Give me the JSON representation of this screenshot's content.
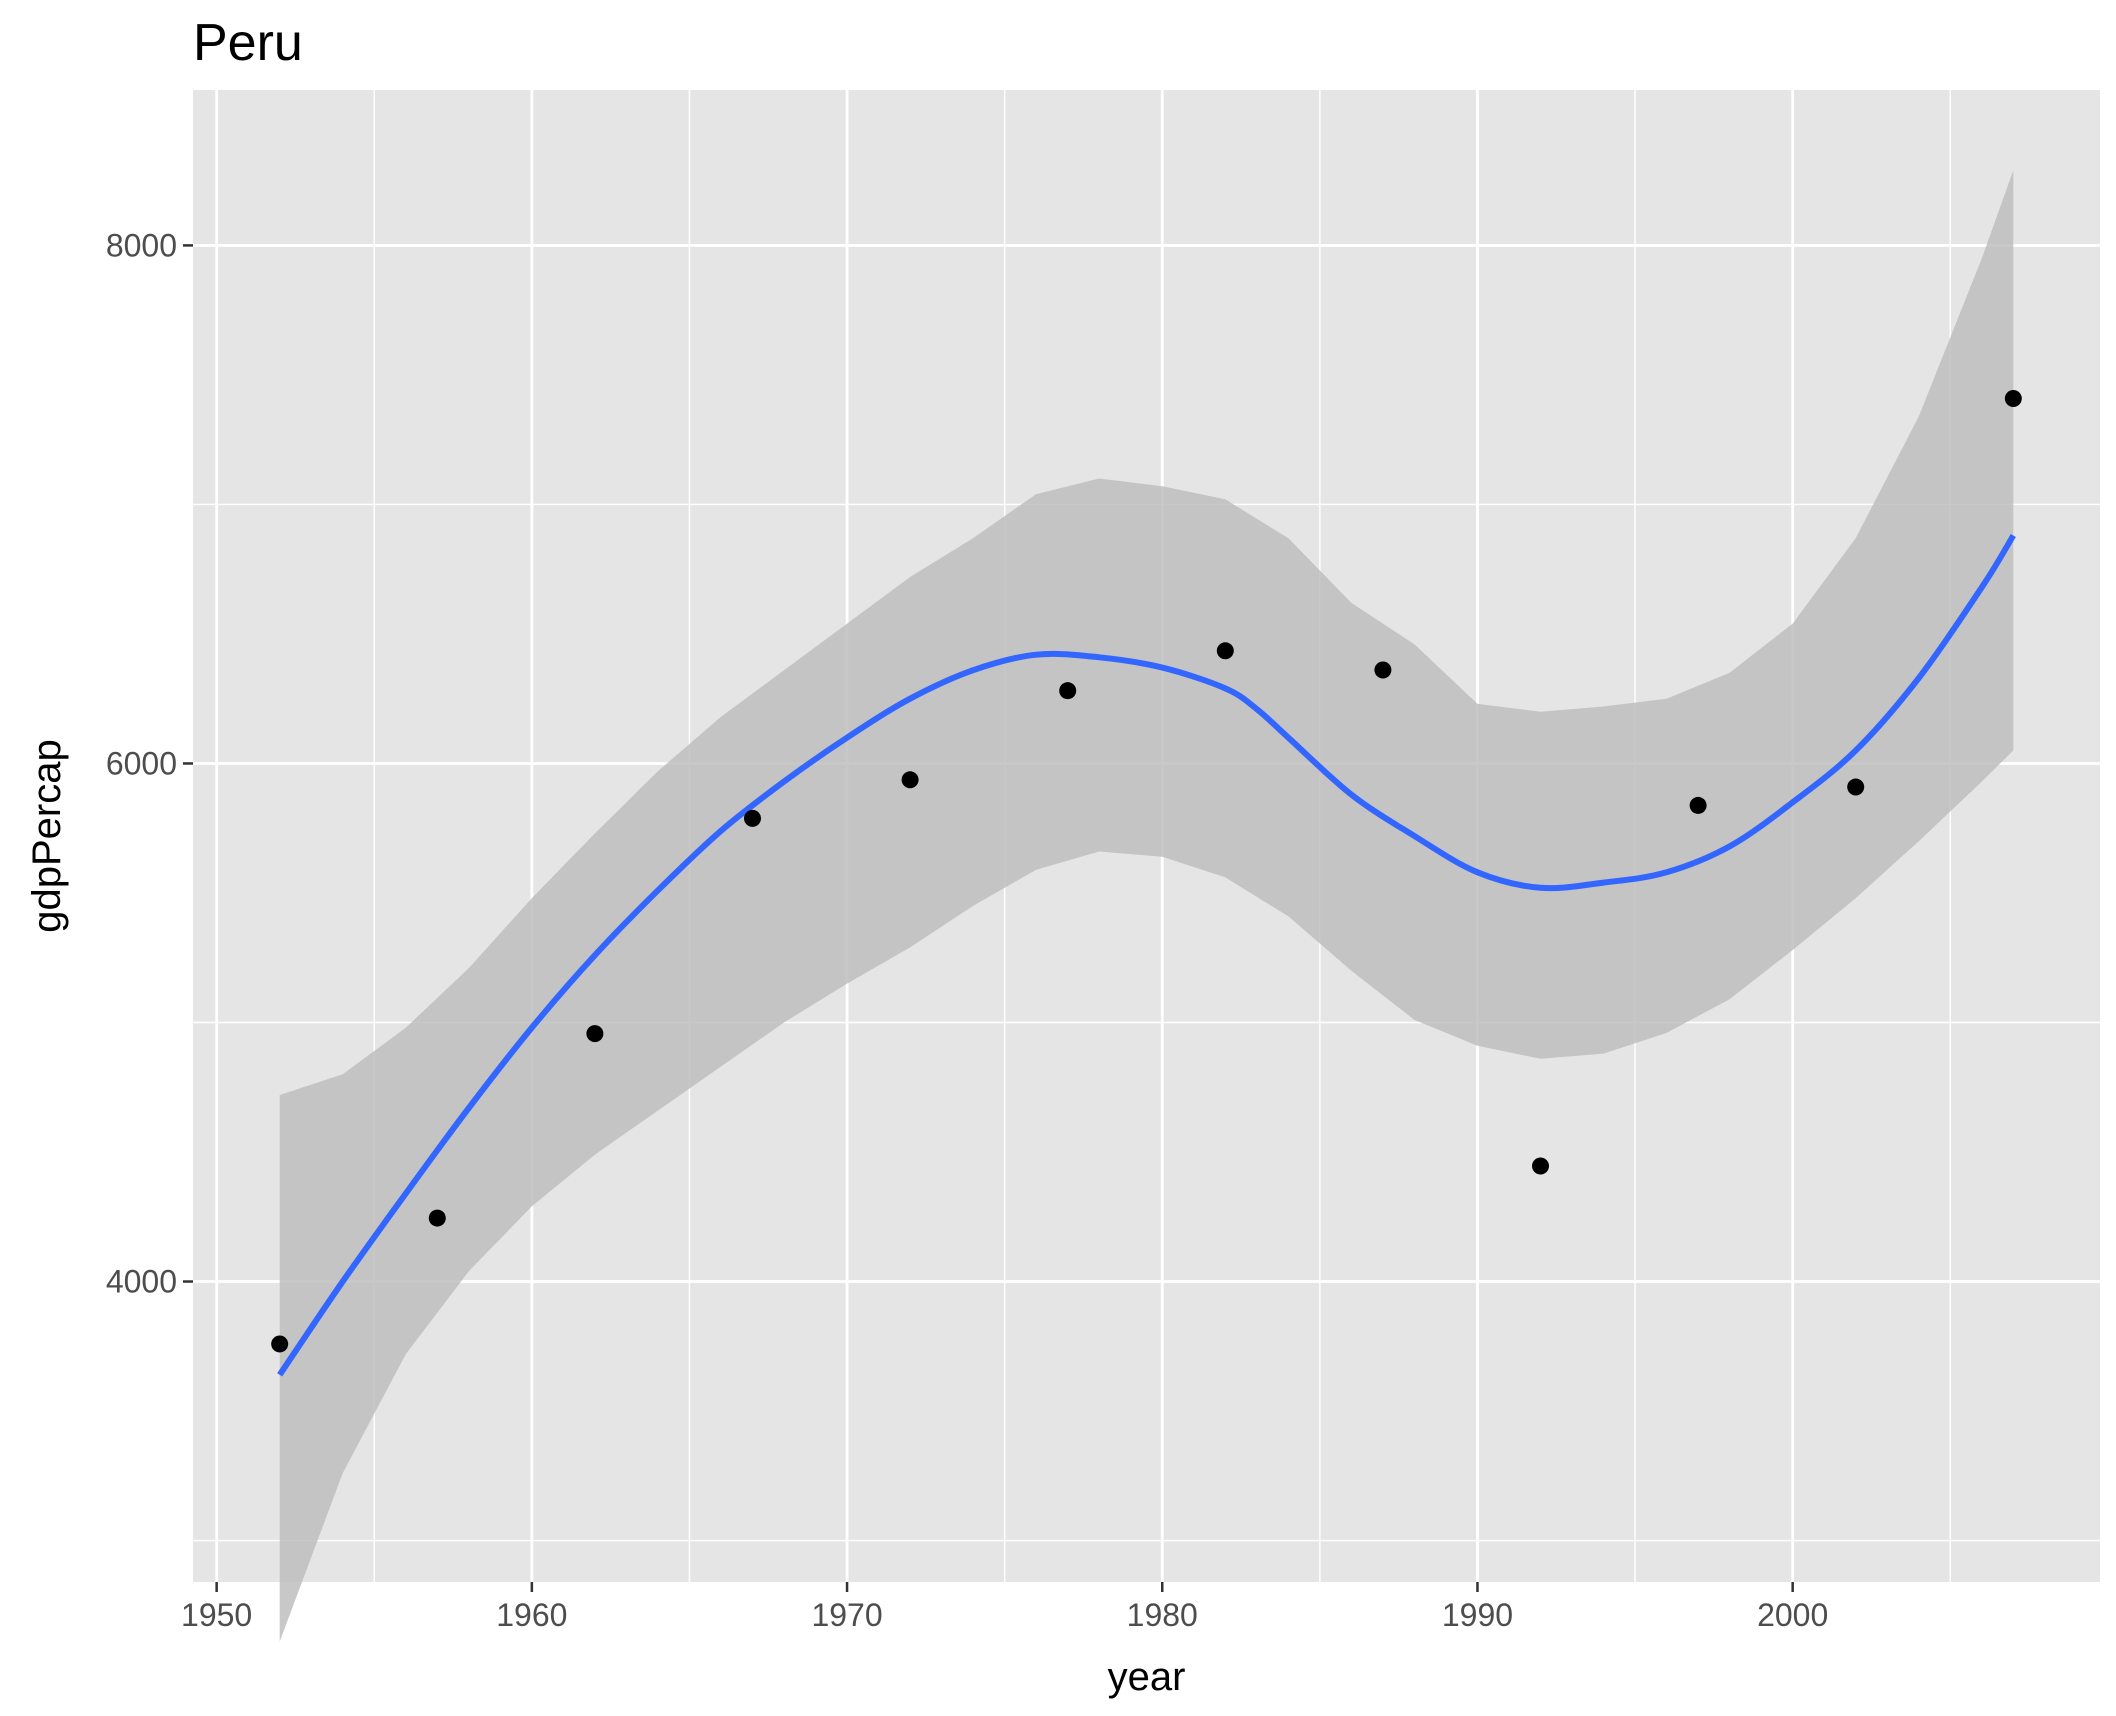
{
  "chart_data": {
    "type": "scatter",
    "title": "Peru",
    "xlabel": "year",
    "ylabel": "gdpPercap",
    "xlim": [
      1949.25,
      2009.75
    ],
    "ylim": [
      2840,
      8600
    ],
    "x_ticks": [
      1950,
      1960,
      1970,
      1980,
      1990,
      2000
    ],
    "x_tick_labels": [
      "1950",
      "1960",
      "1970",
      "1980",
      "1990",
      "2000"
    ],
    "x_minor_ticks": [
      1955,
      1965,
      1975,
      1985,
      1995,
      2005
    ],
    "y_ticks": [
      4000,
      6000,
      8000
    ],
    "y_tick_labels": [
      "4000",
      "6000",
      "8000"
    ],
    "y_minor_ticks": [
      3000,
      5000,
      7000
    ],
    "grid": true,
    "points": {
      "x": [
        1952,
        1957,
        1962,
        1967,
        1972,
        1977,
        1982,
        1987,
        1992,
        1997,
        2002,
        2007
      ],
      "y": [
        3759,
        4245,
        4957,
        5788,
        5937,
        6281,
        6435,
        6361,
        4446,
        5838,
        5909,
        7409
      ]
    },
    "smooth": {
      "x": [
        1952,
        1954,
        1956,
        1958,
        1960,
        1962,
        1964,
        1966,
        1968,
        1970,
        1972,
        1974,
        1976,
        1978,
        1980,
        1982,
        1983,
        1984,
        1986,
        1988,
        1990,
        1992,
        1994,
        1996,
        1998,
        2000,
        2002,
        2004,
        2006,
        2007
      ],
      "y": [
        3640,
        4000,
        4340,
        4670,
        4980,
        5260,
        5510,
        5740,
        5930,
        6100,
        6250,
        6360,
        6420,
        6410,
        6370,
        6290,
        6210,
        6100,
        5880,
        5720,
        5580,
        5520,
        5540,
        5580,
        5680,
        5850,
        6050,
        6330,
        6680,
        6880
      ]
    },
    "confidence_band": {
      "x": [
        1952,
        1954,
        1956,
        1958,
        1960,
        1962,
        1964,
        1966,
        1968,
        1970,
        1972,
        1974,
        1976,
        1978,
        1980,
        1982,
        1984,
        1986,
        1988,
        1990,
        1992,
        1994,
        1996,
        1998,
        2000,
        2002,
        2004,
        2006,
        2007
      ],
      "lower": [
        2610,
        3260,
        3720,
        4040,
        4290,
        4490,
        4660,
        4830,
        5000,
        5150,
        5290,
        5450,
        5590,
        5660,
        5640,
        5560,
        5410,
        5200,
        5010,
        4910,
        4860,
        4880,
        4960,
        5090,
        5280,
        5480,
        5700,
        5930,
        6050
      ],
      "upper": [
        4720,
        4800,
        4980,
        5210,
        5480,
        5730,
        5970,
        6180,
        6360,
        6540,
        6720,
        6870,
        7040,
        7100,
        7070,
        7020,
        6870,
        6620,
        6460,
        6230,
        6200,
        6220,
        6250,
        6350,
        6540,
        6870,
        7340,
        7950,
        8290
      ]
    },
    "colors": {
      "panel": "#E5E5E5",
      "grid": "#FFFFFF",
      "band": "#BEBEBE",
      "line": "#3366FF",
      "points": "#000000",
      "axis_text": "#4D4D4D",
      "axis_ticks": "#333333"
    }
  }
}
